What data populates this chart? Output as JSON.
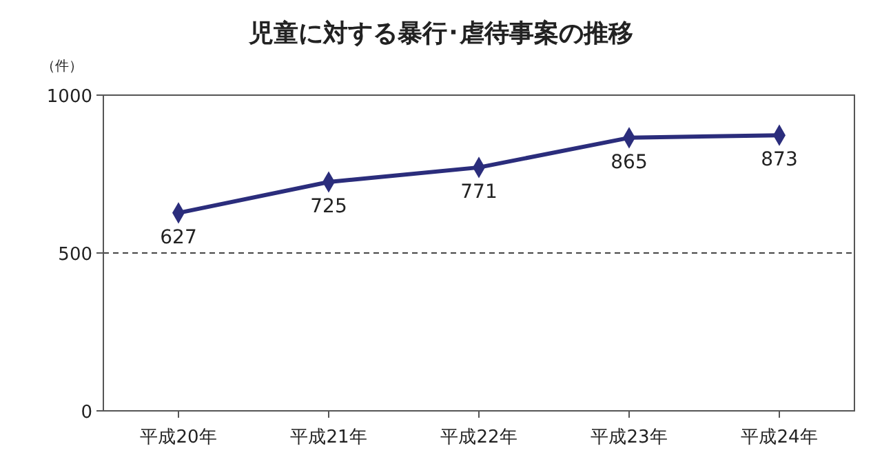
{
  "chart_data": {
    "type": "line",
    "title": "児童に対する暴行･虐待事案の推移",
    "ylabel": "（件）",
    "categories": [
      "平成20年",
      "平成21年",
      "平成22年",
      "平成23年",
      "平成24年"
    ],
    "series": [
      {
        "color": "#2b2d7c",
        "values": [
          627,
          725,
          771,
          865,
          873
        ]
      }
    ],
    "ylim": [
      0,
      1000
    ],
    "yticks": [
      0,
      500,
      1000
    ],
    "grid": "y",
    "marker": "diamond",
    "line_style": "solid",
    "data_labels": true
  }
}
